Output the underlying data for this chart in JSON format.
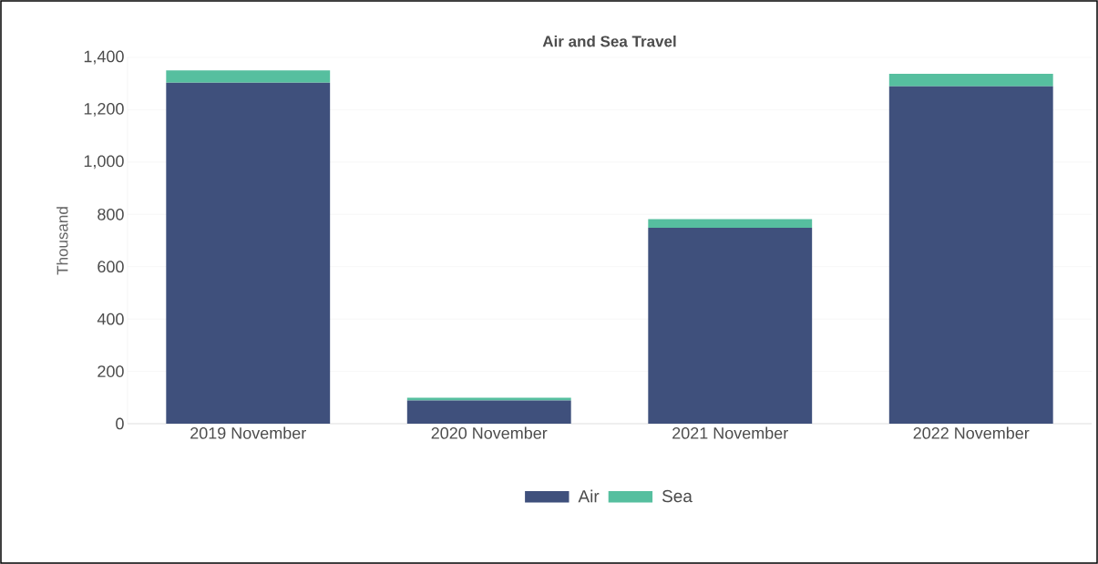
{
  "chart_data": {
    "type": "bar",
    "title": "Air and Sea Travel",
    "ylabel": "Thousand",
    "stacked": true,
    "categories": [
      "2019 November",
      "2020 November",
      "2021 November",
      "2022 November"
    ],
    "series": [
      {
        "name": "Air",
        "color": "#3f507c",
        "values": [
          1303,
          89,
          749,
          1289
        ]
      },
      {
        "name": "Sea",
        "color": "#56bf9f",
        "values": [
          47,
          10,
          33,
          48
        ]
      }
    ],
    "ylim": [
      0,
      1400
    ],
    "yticks": [
      0,
      200,
      400,
      600,
      800,
      {
        "value": 1000,
        "label": "1,000"
      },
      {
        "value": 1200,
        "label": "1,200"
      },
      {
        "value": 1400,
        "label": "1,400"
      }
    ],
    "grid": "y",
    "legend": "bottom"
  }
}
